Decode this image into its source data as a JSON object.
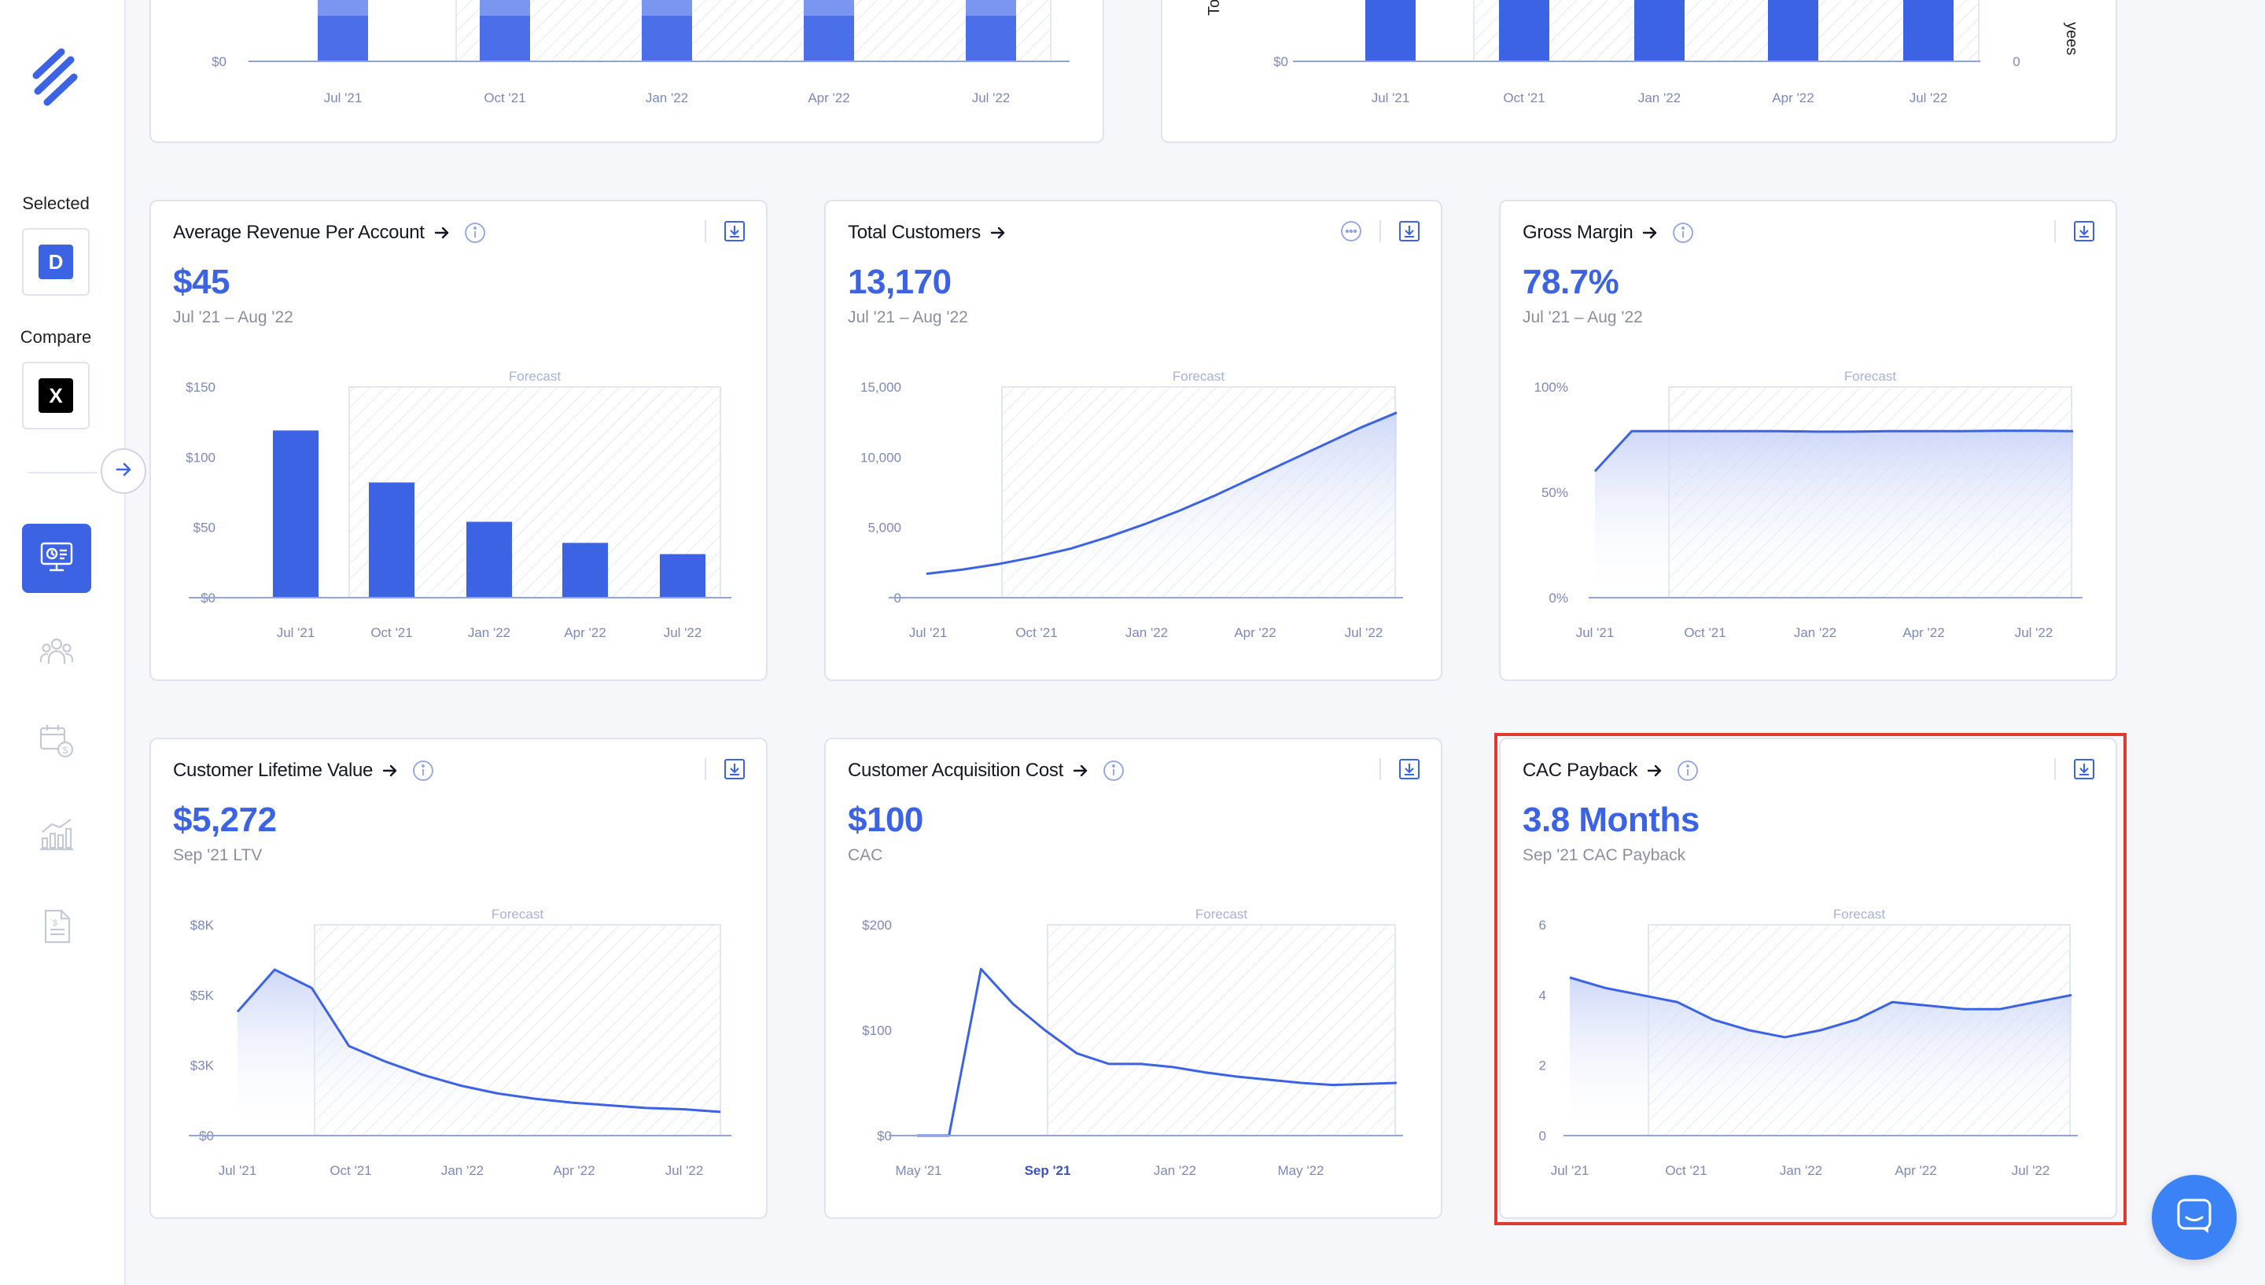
{
  "sidebar": {
    "selected_label": "Selected",
    "compare_label": "Compare",
    "selected_company": "D",
    "compare_company": "X",
    "nav_items": [
      {
        "name": "dashboard-icon",
        "active": true
      },
      {
        "name": "people-icon",
        "active": false
      },
      {
        "name": "calendar-dollar-icon",
        "active": false
      },
      {
        "name": "growth-chart-icon",
        "active": false
      },
      {
        "name": "report-document-icon",
        "active": false
      }
    ]
  },
  "top_partial": {
    "left_ytick": "$0",
    "right_ytick_left": "$0",
    "right_ytick_right": "0",
    "left_vertical_label_fragment": "To",
    "right_vertical_label_fragment": "yees",
    "xticks": [
      "Jul '21",
      "Oct '21",
      "Jan '22",
      "Apr '22",
      "Jul '22"
    ]
  },
  "cards": [
    {
      "title": "Average Revenue Per Account",
      "value": "$45",
      "subtitle": "Jul '21 – Aug '22",
      "tools": [
        "info-icon",
        "download-icon"
      ],
      "chart_data": {
        "type": "bar",
        "title": "",
        "forecast_label": "Forecast",
        "yticks": [
          "$150",
          "$100",
          "$50",
          "$0"
        ],
        "ylim": [
          0,
          150
        ],
        "xticks": [
          "Jul '21",
          "Oct '21",
          "Jan '22",
          "Apr '22",
          "Jul '22"
        ],
        "values": [
          119,
          82,
          54,
          39,
          31
        ]
      }
    },
    {
      "title": "Total Customers",
      "value": "13,170",
      "subtitle": "Jul '21 – Aug '22",
      "tools": [
        "more-icon",
        "download-icon"
      ],
      "chart_data": {
        "type": "area",
        "forecast_label": "Forecast",
        "yticks": [
          "15,000",
          "10,000",
          "5,000",
          "0"
        ],
        "ylim": [
          0,
          15000
        ],
        "xticks": [
          "Jul '21",
          "Oct '21",
          "Jan '22",
          "Apr '22",
          "Jul '22"
        ],
        "x": [
          0,
          1,
          2,
          3,
          4,
          5,
          6,
          7,
          8,
          9,
          10,
          11,
          12,
          13
        ],
        "values": [
          1700,
          2000,
          2400,
          2900,
          3500,
          4300,
          5200,
          6200,
          7300,
          8500,
          9700,
          10900,
          12100,
          13170
        ]
      }
    },
    {
      "title": "Gross Margin",
      "value": "78.7%",
      "subtitle": "Jul '21 – Aug '22",
      "tools": [
        "info-icon",
        "download-icon"
      ],
      "chart_data": {
        "type": "area",
        "forecast_label": "Forecast",
        "yticks": [
          "100%",
          "50%",
          "0%"
        ],
        "ylim": [
          0,
          100
        ],
        "xticks": [
          "Jul '21",
          "Oct '21",
          "Jan '22",
          "Apr '22",
          "Jul '22"
        ],
        "x": [
          0,
          1,
          2,
          3,
          4,
          5,
          6,
          7,
          8,
          9,
          10,
          11,
          12,
          13
        ],
        "values": [
          60,
          79,
          79,
          79,
          79,
          79,
          78.8,
          78.8,
          79,
          79,
          79,
          79.2,
          79.2,
          79
        ]
      }
    },
    {
      "title": "Customer Lifetime Value",
      "value": "$5,272",
      "subtitle": "Sep '21 LTV",
      "tools": [
        "info-icon",
        "download-icon"
      ],
      "chart_data": {
        "type": "area",
        "forecast_label": "Forecast",
        "yticks": [
          "$8K",
          "$5K",
          "$3K",
          "$0"
        ],
        "ylim": [
          0,
          8000
        ],
        "xticks": [
          "Jul '21",
          "Oct '21",
          "Jan '22",
          "Apr '22",
          "Jul '22"
        ],
        "x": [
          0,
          1,
          2,
          3,
          4,
          5,
          6,
          7,
          8,
          9,
          10,
          11,
          12,
          13
        ],
        "values": [
          4700,
          6300,
          5600,
          3400,
          2800,
          2300,
          1900,
          1600,
          1400,
          1250,
          1150,
          1050,
          1000,
          900
        ]
      }
    },
    {
      "title": "Customer Acquisition Cost",
      "value": "$100",
      "subtitle": "CAC",
      "tools": [
        "info-icon",
        "download-icon"
      ],
      "chart_data": {
        "type": "line",
        "forecast_label": "Forecast",
        "yticks": [
          "$200",
          "$100",
          "$0"
        ],
        "ylim": [
          0,
          200
        ],
        "xticks": [
          "May '21",
          "Sep '21",
          "Jan '22",
          "May '22"
        ],
        "xticks_bold": [
          false,
          true,
          false,
          false
        ],
        "x": [
          0,
          1,
          2,
          3,
          4,
          5,
          6,
          7,
          8,
          9,
          10,
          11,
          12,
          13,
          14,
          15
        ],
        "values": [
          0,
          0,
          158,
          125,
          100,
          78,
          68,
          68,
          65,
          60,
          56,
          53,
          50,
          48,
          49,
          50
        ]
      }
    },
    {
      "title": "CAC Payback",
      "value": "3.8 Months",
      "subtitle": "Sep '21 CAC Payback",
      "tools": [
        "info-icon",
        "download-icon"
      ],
      "chart_data": {
        "type": "area",
        "forecast_label": "Forecast",
        "yticks": [
          "6",
          "4",
          "2",
          "0"
        ],
        "ylim": [
          0,
          6
        ],
        "xticks": [
          "Jul '21",
          "Oct '21",
          "Jan '22",
          "Apr '22",
          "Jul '22"
        ],
        "x": [
          0,
          1,
          2,
          3,
          4,
          5,
          6,
          7,
          8,
          9,
          10,
          11,
          12,
          13,
          14
        ],
        "values": [
          4.5,
          4.2,
          4.0,
          3.8,
          3.3,
          3.0,
          2.8,
          3.0,
          3.3,
          3.8,
          3.7,
          3.6,
          3.6,
          3.8,
          4.0
        ]
      }
    }
  ],
  "colors": {
    "accent": "#3b63e4",
    "card_border": "#dfe3ee",
    "highlight": "#e03a2f",
    "chat_button": "#3b82f6"
  }
}
